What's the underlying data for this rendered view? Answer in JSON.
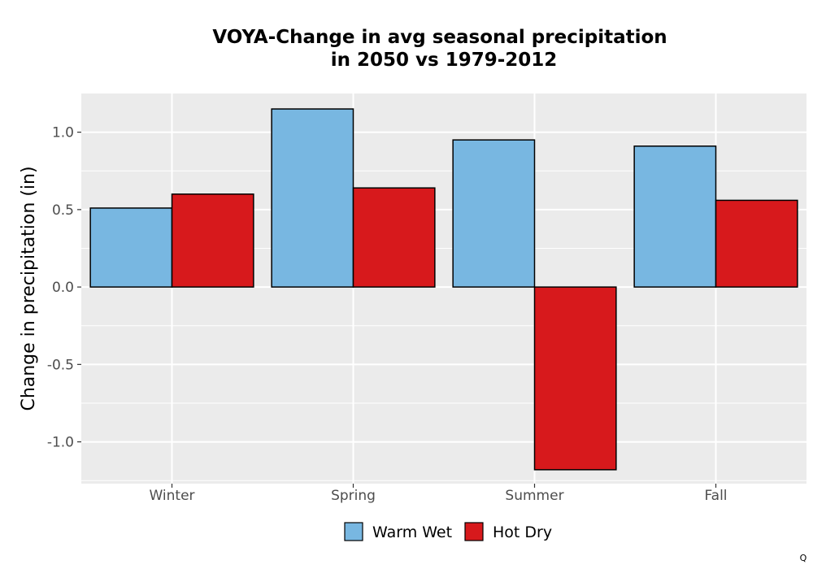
{
  "chart_data": {
    "type": "bar",
    "title": [
      "VOYA-Change in avg seasonal precipitation",
      "in 2050 vs 1979-2012"
    ],
    "xlabel": "",
    "ylabel": "Change in precipitation (in)",
    "categories": [
      "Winter",
      "Spring",
      "Summer",
      "Fall"
    ],
    "series": [
      {
        "name": "Warm Wet",
        "color": "#78b7e1",
        "values": [
          0.51,
          1.15,
          0.95,
          0.91
        ]
      },
      {
        "name": "Hot Dry",
        "color": "#d7191c",
        "values": [
          0.6,
          0.64,
          -1.18,
          0.56
        ]
      }
    ],
    "ylim": [
      -1.27,
      1.25
    ],
    "yticks": [
      -1.0,
      -0.5,
      0.0,
      0.5,
      1.0
    ],
    "ytick_labels": [
      "-1.0",
      "-0.5",
      "0.0",
      "0.5",
      "1.0"
    ],
    "grid": true,
    "legend_position": "bottom",
    "panel_background": "#ebebeb"
  },
  "footnote": "Q"
}
